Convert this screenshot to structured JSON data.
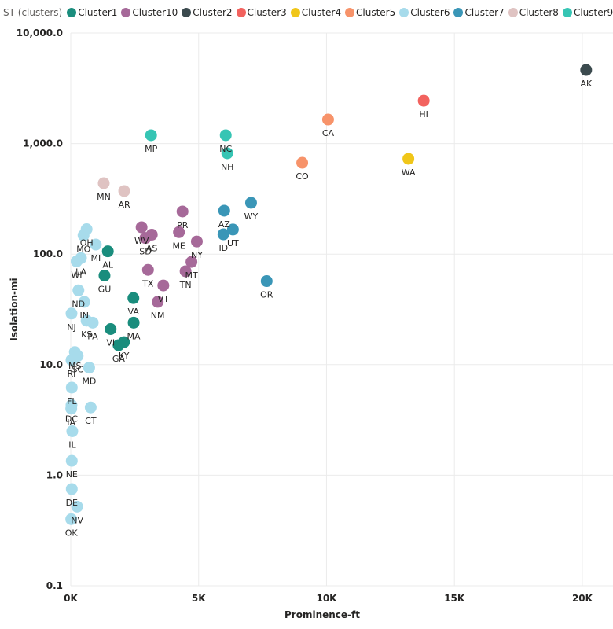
{
  "legend": {
    "title": "ST (clusters)",
    "items": [
      {
        "name": "Cluster1",
        "color": "#1a8d7d"
      },
      {
        "name": "Cluster10",
        "color": "#a66999"
      },
      {
        "name": "Cluster2",
        "color": "#3b4a4e"
      },
      {
        "name": "Cluster3",
        "color": "#f2625e"
      },
      {
        "name": "Cluster4",
        "color": "#f0c619"
      },
      {
        "name": "Cluster5",
        "color": "#f7936a"
      },
      {
        "name": "Cluster6",
        "color": "#a7dbeb"
      },
      {
        "name": "Cluster7",
        "color": "#3a96b7"
      },
      {
        "name": "Cluster8",
        "color": "#dfc3c2"
      },
      {
        "name": "Cluster9",
        "color": "#36c5b4"
      }
    ]
  },
  "chart_data": {
    "type": "scatter",
    "title": "",
    "xlabel": "Prominence-ft",
    "ylabel": "Isolation-mi",
    "xlim": [
      0,
      21200
    ],
    "ylim": [
      0.1,
      10000
    ],
    "yscale": "log",
    "x_ticks": [
      0,
      5000,
      10000,
      15000,
      20000
    ],
    "x_tick_labels": [
      "0K",
      "5K",
      "10K",
      "15K",
      "20K"
    ],
    "y_ticks": [
      0.1,
      1,
      10,
      100,
      1000,
      10000
    ],
    "y_tick_labels": [
      "0.1",
      "1.0",
      "10.0",
      "100.0",
      "1,000.0",
      "10,000.0"
    ],
    "grid": true,
    "legend_position": "top-left",
    "points": [
      {
        "label": "AK",
        "cluster": "Cluster2",
        "x": 20150,
        "y": 4630
      },
      {
        "label": "HI",
        "cluster": "Cluster3",
        "x": 13800,
        "y": 2440
      },
      {
        "label": "WA",
        "cluster": "Cluster4",
        "x": 13200,
        "y": 728
      },
      {
        "label": "CA",
        "cluster": "Cluster5",
        "x": 10060,
        "y": 1650
      },
      {
        "label": "CO",
        "cluster": "Cluster5",
        "x": 9050,
        "y": 670
      },
      {
        "label": "MP",
        "cluster": "Cluster9",
        "x": 3140,
        "y": 1190
      },
      {
        "label": "NC",
        "cluster": "Cluster9",
        "x": 6060,
        "y": 1190
      },
      {
        "label": "NH",
        "cluster": "Cluster9",
        "x": 6120,
        "y": 817
      },
      {
        "label": "MN",
        "cluster": "Cluster8",
        "x": 1290,
        "y": 438
      },
      {
        "label": "AR",
        "cluster": "Cluster8",
        "x": 2090,
        "y": 372
      },
      {
        "label": "WY",
        "cluster": "Cluster7",
        "x": 7050,
        "y": 291
      },
      {
        "label": "AZ",
        "cluster": "Cluster7",
        "x": 6000,
        "y": 247
      },
      {
        "label": "UT",
        "cluster": "Cluster7",
        "x": 6340,
        "y": 167
      },
      {
        "label": "ID",
        "cluster": "Cluster7",
        "x": 5970,
        "y": 151
      },
      {
        "label": "OR",
        "cluster": "Cluster7",
        "x": 7660,
        "y": 57
      },
      {
        "label": "PR",
        "cluster": "Cluster10",
        "x": 4370,
        "y": 243
      },
      {
        "label": "WV",
        "cluster": "Cluster10",
        "x": 2770,
        "y": 175
      },
      {
        "label": "SD",
        "cluster": "Cluster10",
        "x": 2920,
        "y": 140
      },
      {
        "label": "AS",
        "cluster": "Cluster10",
        "x": 3170,
        "y": 150
      },
      {
        "label": "ME",
        "cluster": "Cluster10",
        "x": 4230,
        "y": 158
      },
      {
        "label": "NY",
        "cluster": "Cluster10",
        "x": 4930,
        "y": 130
      },
      {
        "label": "MT",
        "cluster": "Cluster10",
        "x": 4720,
        "y": 85
      },
      {
        "label": "TN",
        "cluster": "Cluster10",
        "x": 4490,
        "y": 70
      },
      {
        "label": "TX",
        "cluster": "Cluster10",
        "x": 3020,
        "y": 72
      },
      {
        "label": "VT",
        "cluster": "Cluster10",
        "x": 3620,
        "y": 52
      },
      {
        "label": "NM",
        "cluster": "Cluster10",
        "x": 3400,
        "y": 37
      },
      {
        "label": "AL",
        "cluster": "Cluster1",
        "x": 1450,
        "y": 106
      },
      {
        "label": "GU",
        "cluster": "Cluster1",
        "x": 1320,
        "y": 64
      },
      {
        "label": "VA",
        "cluster": "Cluster1",
        "x": 2450,
        "y": 40
      },
      {
        "label": "VI",
        "cluster": "Cluster1",
        "x": 1560,
        "y": 21
      },
      {
        "label": "MA",
        "cluster": "Cluster1",
        "x": 2460,
        "y": 24
      },
      {
        "label": "KY",
        "cluster": "Cluster1",
        "x": 2080,
        "y": 16
      },
      {
        "label": "GA",
        "cluster": "Cluster1",
        "x": 1870,
        "y": 15
      },
      {
        "label": "OH",
        "cluster": "Cluster6",
        "x": 620,
        "y": 168
      },
      {
        "label": "MI",
        "cluster": "Cluster6",
        "x": 980,
        "y": 122
      },
      {
        "label": "MO",
        "cluster": "Cluster6",
        "x": 500,
        "y": 148
      },
      {
        "label": "LA",
        "cluster": "Cluster6",
        "x": 400,
        "y": 92
      },
      {
        "label": "WI",
        "cluster": "Cluster6",
        "x": 230,
        "y": 86
      },
      {
        "label": "ND",
        "cluster": "Cluster6",
        "x": 300,
        "y": 47
      },
      {
        "label": "IN",
        "cluster": "Cluster6",
        "x": 530,
        "y": 37
      },
      {
        "label": "KS",
        "cluster": "Cluster6",
        "x": 620,
        "y": 25
      },
      {
        "label": "PA",
        "cluster": "Cluster6",
        "x": 860,
        "y": 24
      },
      {
        "label": "NJ",
        "cluster": "Cluster6",
        "x": 30,
        "y": 29
      },
      {
        "label": "MS",
        "cluster": "Cluster6",
        "x": 160,
        "y": 13
      },
      {
        "label": "SC",
        "cluster": "Cluster6",
        "x": 270,
        "y": 12
      },
      {
        "label": "RI",
        "cluster": "Cluster6",
        "x": 30,
        "y": 11
      },
      {
        "label": "MD",
        "cluster": "Cluster6",
        "x": 720,
        "y": 9.4
      },
      {
        "label": "FL",
        "cluster": "Cluster6",
        "x": 40,
        "y": 6.2
      },
      {
        "label": "DC",
        "cluster": "Cluster6",
        "x": 30,
        "y": 4.3
      },
      {
        "label": "CT",
        "cluster": "Cluster6",
        "x": 780,
        "y": 4.1
      },
      {
        "label": "IA",
        "cluster": "Cluster6",
        "x": 20,
        "y": 4.0
      },
      {
        "label": "IL",
        "cluster": "Cluster6",
        "x": 60,
        "y": 2.5
      },
      {
        "label": "NE",
        "cluster": "Cluster6",
        "x": 40,
        "y": 1.35
      },
      {
        "label": "DE",
        "cluster": "Cluster6",
        "x": 40,
        "y": 0.75
      },
      {
        "label": "NV",
        "cluster": "Cluster6",
        "x": 250,
        "y": 0.52
      },
      {
        "label": "OK",
        "cluster": "Cluster6",
        "x": 20,
        "y": 0.4
      }
    ]
  }
}
